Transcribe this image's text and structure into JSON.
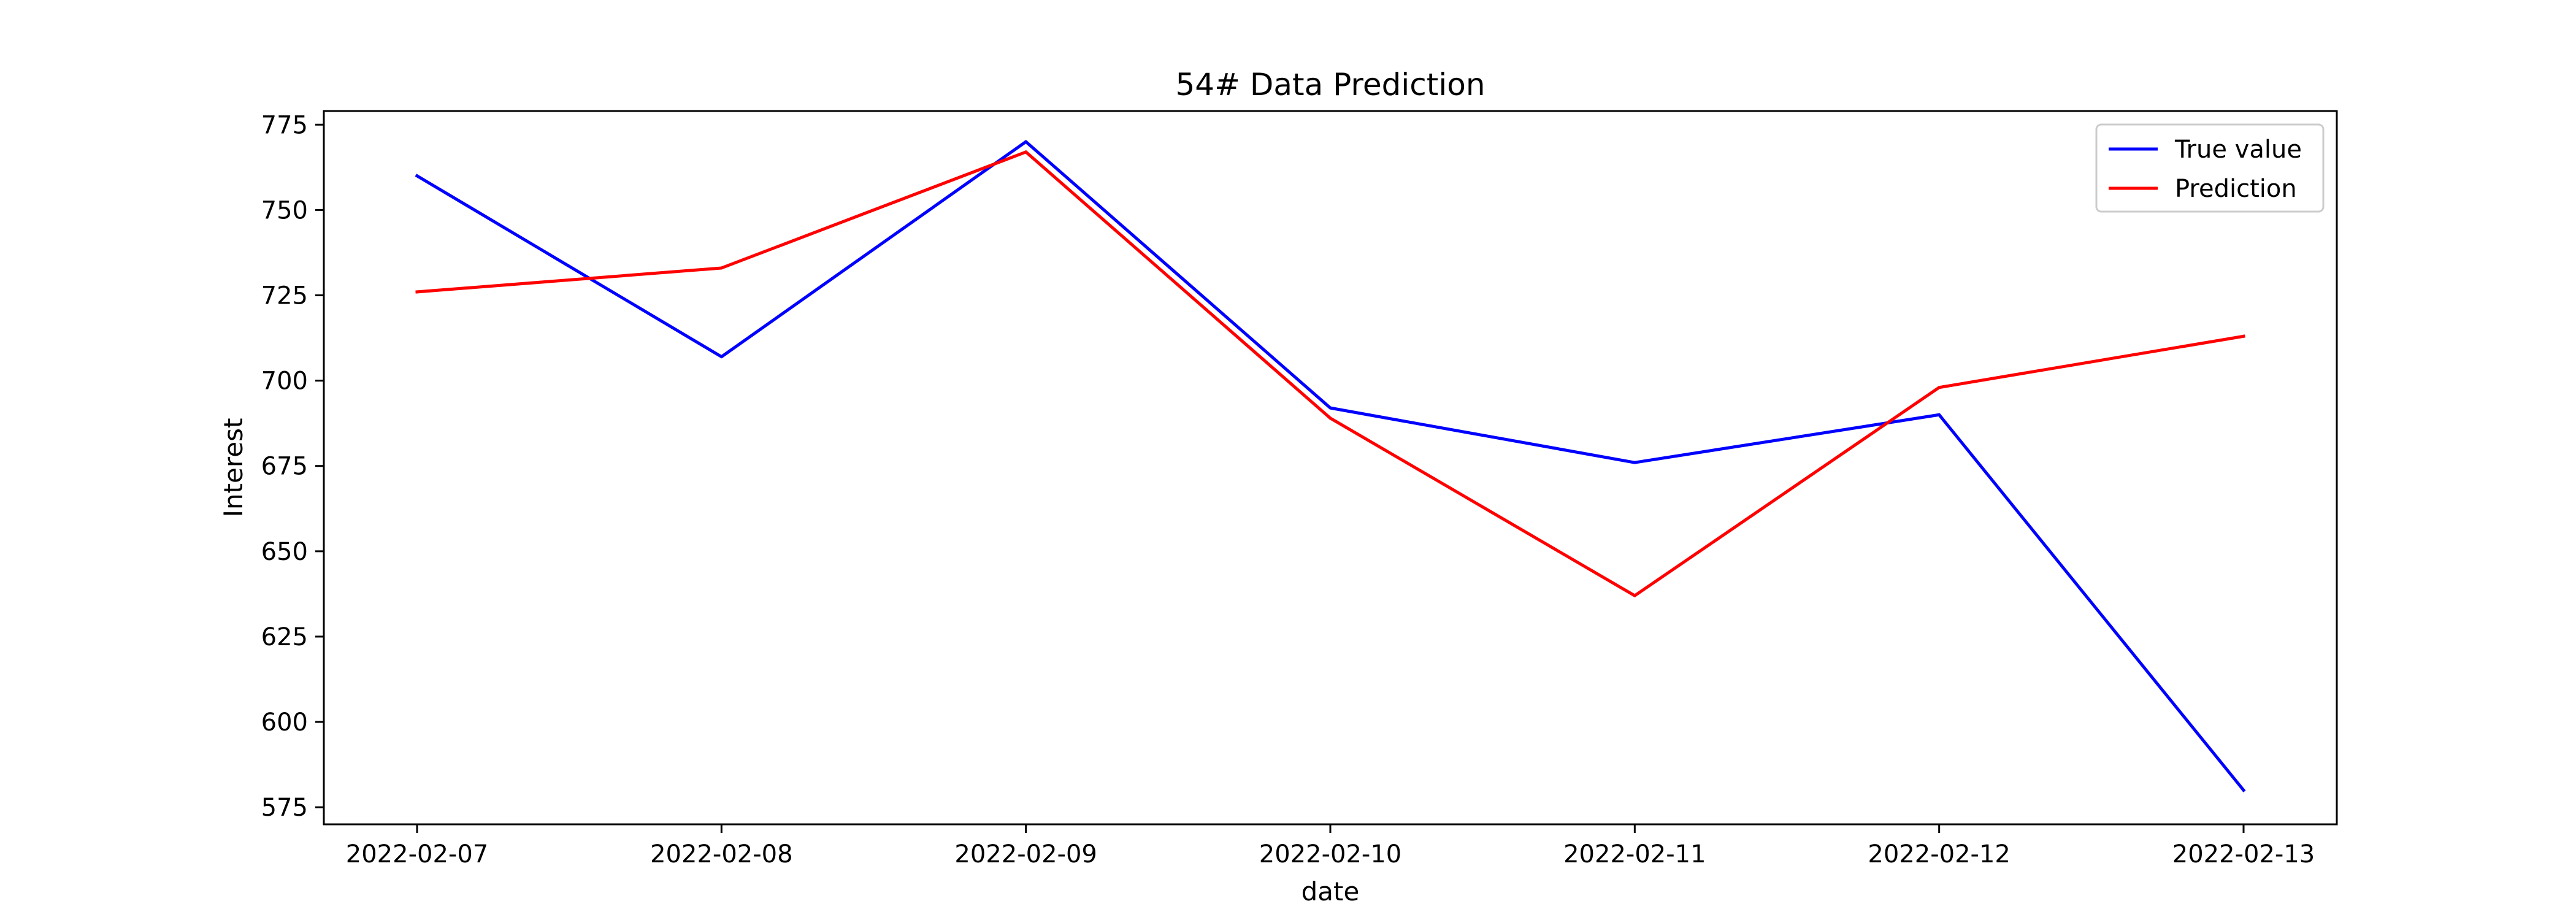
{
  "chart_data": {
    "type": "line",
    "title": "54# Data Prediction",
    "xlabel": "date",
    "ylabel": "Interest",
    "x": [
      "2022-02-07",
      "2022-02-08",
      "2022-02-09",
      "2022-02-10",
      "2022-02-11",
      "2022-02-12",
      "2022-02-13"
    ],
    "ylim": [
      570,
      779
    ],
    "yticks": [
      575,
      600,
      625,
      650,
      675,
      700,
      725,
      750,
      775
    ],
    "grid": false,
    "legend_position": "top-right",
    "series": [
      {
        "name": "True value",
        "color": "#0000ff",
        "values": [
          760,
          707,
          770,
          692,
          676,
          690,
          580
        ]
      },
      {
        "name": "Prediction",
        "color": "#ff0000",
        "values": [
          726,
          733,
          767,
          689,
          637,
          698,
          713
        ]
      }
    ]
  }
}
